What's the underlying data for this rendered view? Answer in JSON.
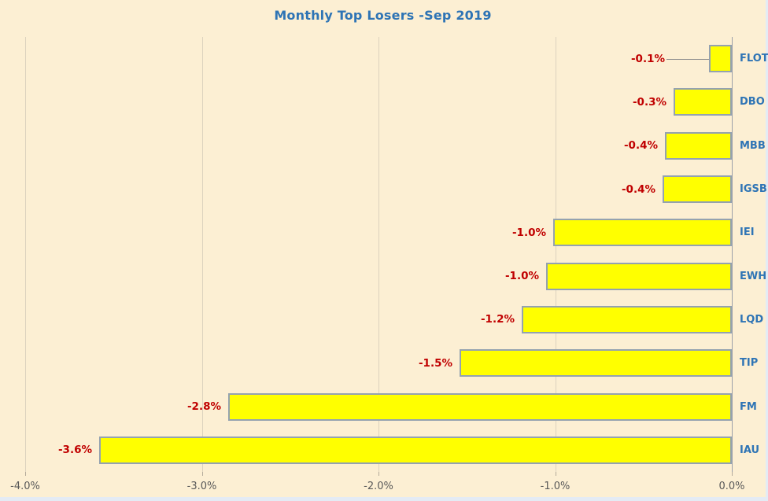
{
  "chart_data": {
    "type": "bar",
    "orientation": "horizontal",
    "title": "Monthly Top Losers -Sep 2019",
    "categories": [
      "FLOT",
      "DBO",
      "MBB",
      "IGSB",
      "IEI",
      "EWH",
      "LQD",
      "TIP",
      "FM",
      "IAU"
    ],
    "values": [
      -0.1,
      -0.3,
      -0.4,
      -0.4,
      -1.0,
      -1.0,
      -1.2,
      -1.5,
      -2.8,
      -3.6
    ],
    "value_labels": [
      "-0.1%",
      "-0.3%",
      "-0.4%",
      "-0.4%",
      "-1.0%",
      "-1.0%",
      "-1.2%",
      "-1.5%",
      "-2.8%",
      "-3.6%"
    ],
    "bar_extents_pct": [
      -0.13,
      -0.33,
      -0.38,
      -0.39,
      -1.01,
      -1.05,
      -1.19,
      -1.54,
      -2.85,
      -3.58
    ],
    "callout_indices": [
      0
    ],
    "xlim": [
      -4.0,
      0.0
    ],
    "x_ticks": [
      "-4.0%",
      "-3.0%",
      "-2.0%",
      "-1.0%",
      "0.0%"
    ],
    "x_tick_values": [
      -4,
      -3,
      -2,
      -1,
      0
    ],
    "grid": true,
    "legend": "none",
    "xlabel": "",
    "ylabel": ""
  },
  "style": {
    "chart_background": "#FCEFD3",
    "window_background": "#E4EBF4",
    "title_color": "#2E74B5",
    "category_label_color": "#2E74B5",
    "value_label_color": "#C00000",
    "bar_fill": "#FFFF00",
    "bar_border": "#94A2B0",
    "gridline_color": "#DCD2BE",
    "zero_line_color": "#9AA0A8",
    "tick_label_color": "#595959",
    "leader_line_color": "#8F8F8F"
  }
}
